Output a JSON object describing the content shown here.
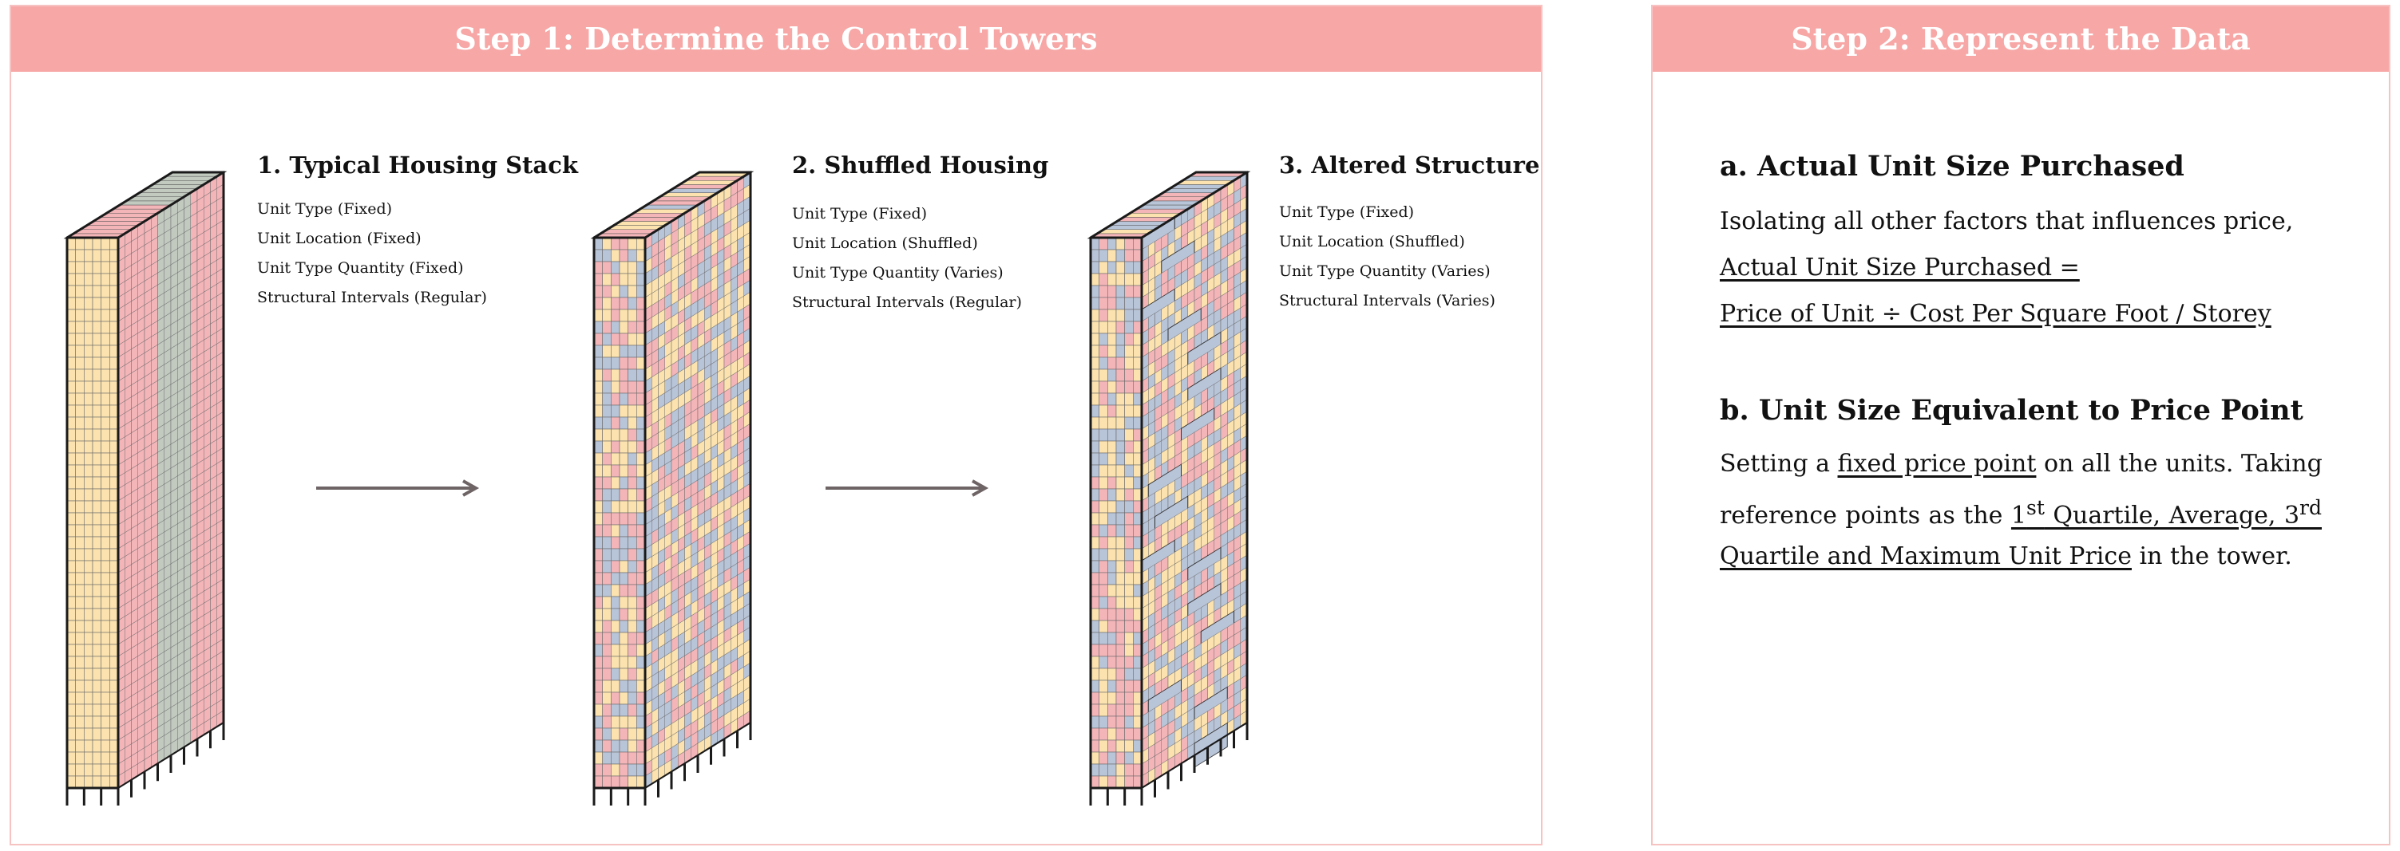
{
  "step1": {
    "header": "Step 1: Determine the Control Towers",
    "towers": [
      {
        "title": "1. Typical Housing Stack",
        "props": [
          "Unit Type (Fixed)",
          "Unit Location (Fixed)",
          "Unit Type Quantity (Fixed)",
          "Structural Intervals (Regular)"
        ],
        "arrangement": "stacked-columns"
      },
      {
        "title": "2. Shuffled Housing",
        "props": [
          "Unit Type (Fixed)",
          "Unit Location (Shuffled)",
          "Unit Type Quantity (Varies)",
          "Structural Intervals (Regular)"
        ],
        "arrangement": "shuffled"
      },
      {
        "title": "3. Altered Structure",
        "props": [
          "Unit Type (Fixed)",
          "Unit Location (Shuffled)",
          "Unit Type Quantity (Varies)",
          "Structural Intervals (Varies)"
        ],
        "arrangement": "shuffled-varied-structure"
      }
    ]
  },
  "step2": {
    "header": "Step 2: Represent the Data",
    "section_a": {
      "title": "a. Actual Unit Size Purchased",
      "line1": "Isolating all other factors that influences price,",
      "line2": "Actual Unit Size Purchased =",
      "line3": "Price of Unit ÷ Cost Per Square Foot / Storey"
    },
    "section_b": {
      "title": "b. Unit Size Equivalent to Price Point",
      "l1_pre": "Setting a",
      "l1_ul": "fixed price point",
      "l1_post": "on all the units. Taking",
      "l2_pre": "reference points as the",
      "l2_n1": "1",
      "l2_s1": "st",
      "l2_mid": " Quartile, Average, 3",
      "l2_s2": "rd",
      "l3_ul": "Quartile and Maximum Unit Price",
      "l3_post": " in the tower."
    }
  },
  "colors": {
    "header_bg": "#f6a7a6",
    "panel_border": "#f7c3c2",
    "unit_yellow": "#fbe2ae",
    "unit_pink": "#f4b5b9",
    "unit_sage": "#c2cac0",
    "unit_blue": "#b8c4d8",
    "arrow": "#6e6466"
  }
}
